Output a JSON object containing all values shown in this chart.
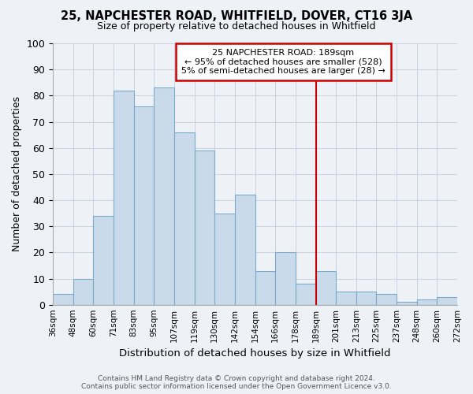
{
  "title": "25, NAPCHESTER ROAD, WHITFIELD, DOVER, CT16 3JA",
  "subtitle": "Size of property relative to detached houses in Whitfield",
  "xlabel": "Distribution of detached houses by size in Whitfield",
  "ylabel": "Number of detached properties",
  "bar_labels": [
    "36sqm",
    "48sqm",
    "60sqm",
    "71sqm",
    "83sqm",
    "95sqm",
    "107sqm",
    "119sqm",
    "130sqm",
    "142sqm",
    "154sqm",
    "166sqm",
    "178sqm",
    "189sqm",
    "201sqm",
    "213sqm",
    "225sqm",
    "237sqm",
    "248sqm",
    "260sqm",
    "272sqm"
  ],
  "bar_values": [
    4,
    10,
    34,
    82,
    76,
    83,
    66,
    59,
    35,
    42,
    13,
    20,
    8,
    13,
    5,
    5,
    4,
    1,
    2,
    3
  ],
  "bar_color": "#c9daea",
  "bar_edge_color": "#7aaac8",
  "grid_color": "#c8d4e0",
  "vline_label_index": 13,
  "vline_color": "#cc0000",
  "annotation_title": "25 NAPCHESTER ROAD: 189sqm",
  "annotation_line1": "← 95% of detached houses are smaller (528)",
  "annotation_line2": "5% of semi-detached houses are larger (28) →",
  "annotation_box_color": "#ffffff",
  "annotation_border_color": "#cc0000",
  "footer_line1": "Contains HM Land Registry data © Crown copyright and database right 2024.",
  "footer_line2": "Contains public sector information licensed under the Open Government Licence v3.0.",
  "ylim": [
    0,
    100
  ],
  "background_color": "#eef2f7"
}
